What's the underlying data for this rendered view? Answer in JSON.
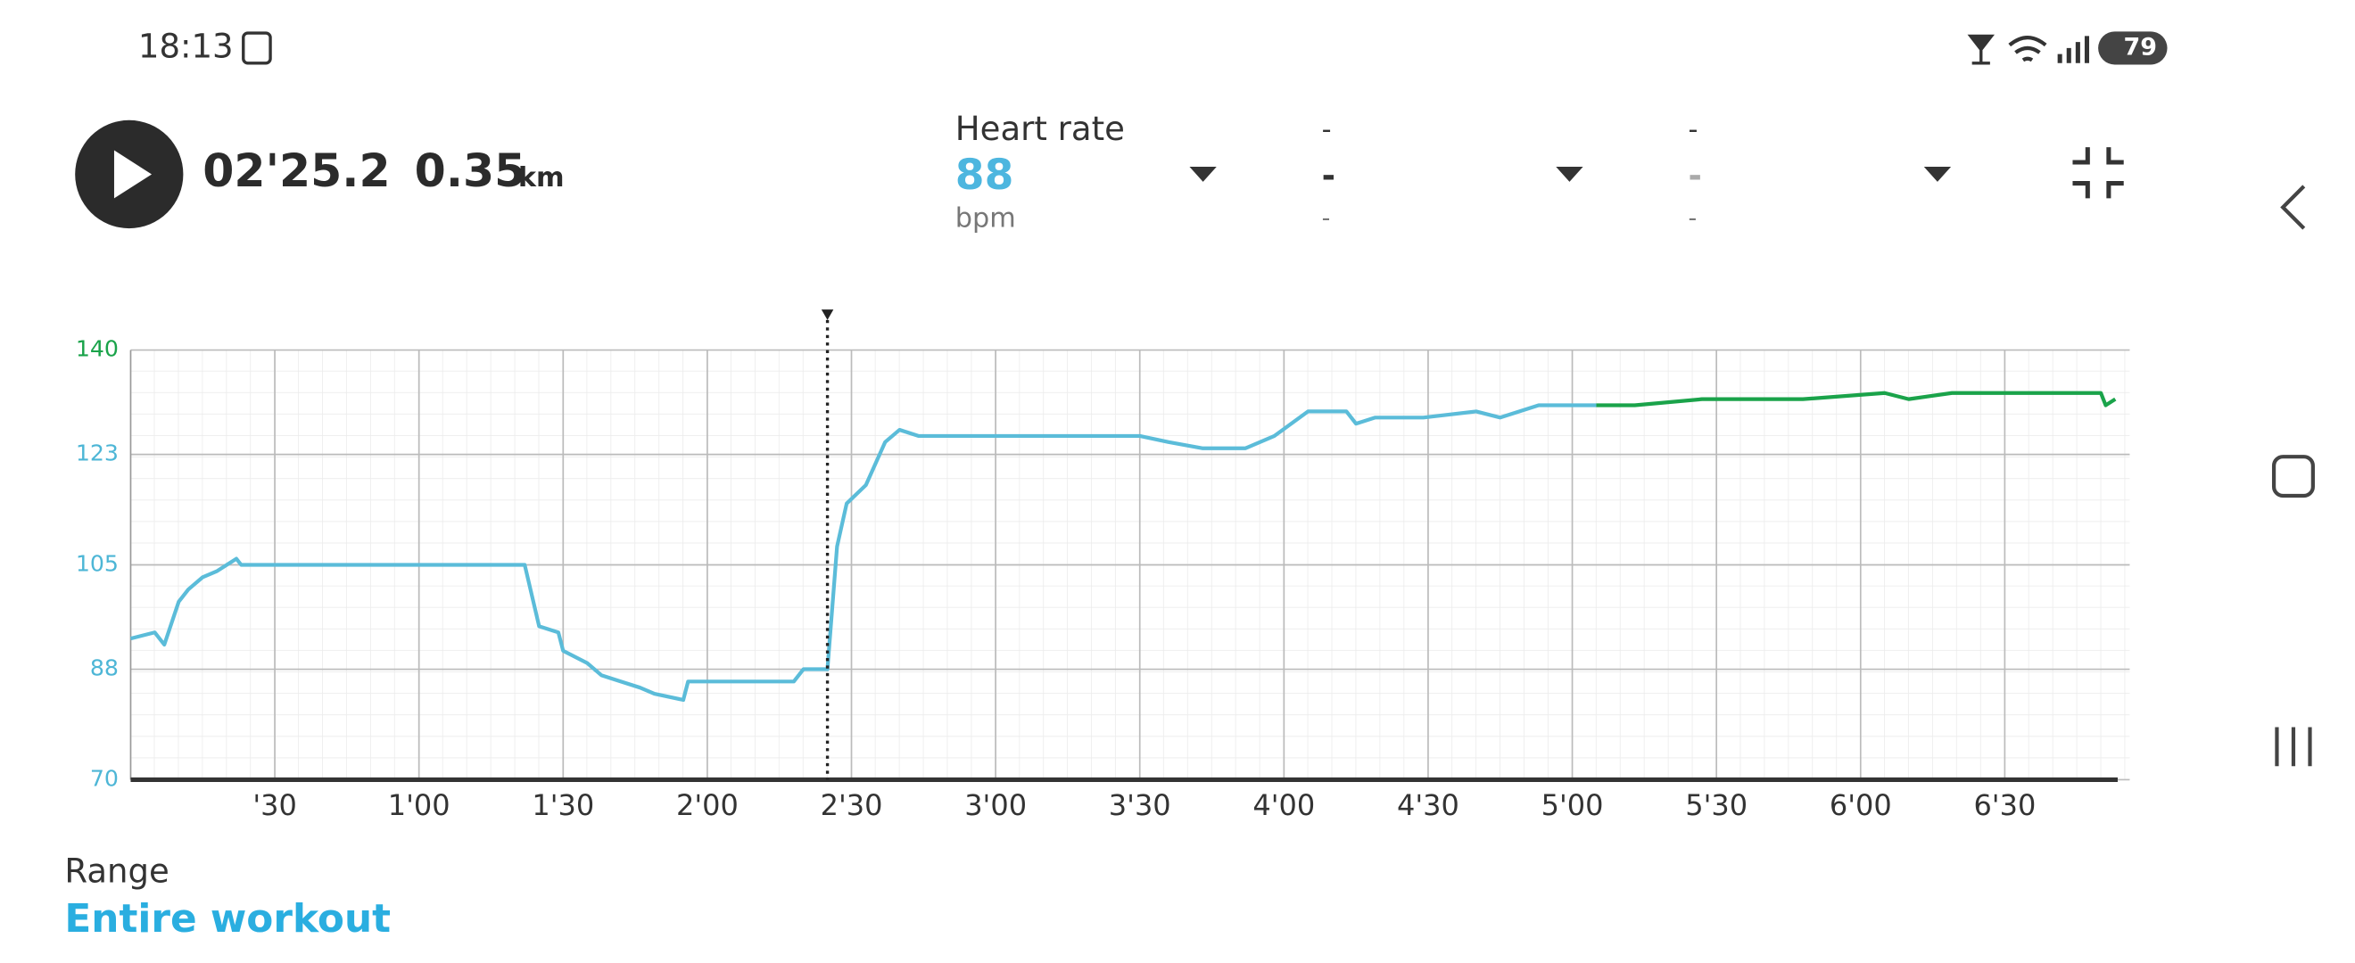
{
  "status_bar": {
    "time": "18:13",
    "battery": "79"
  },
  "header": {
    "elapsed": "02'25.2",
    "distance": "0.35",
    "distance_unit": "km"
  },
  "metrics": [
    {
      "label": "Heart rate",
      "value": "88",
      "unit": "bpm"
    },
    {
      "label": "-",
      "value": "-",
      "unit": "-"
    },
    {
      "label": "-",
      "value": "-",
      "unit": "-"
    }
  ],
  "chart_data": {
    "type": "line",
    "xlim": [
      0,
      416
    ],
    "ylim": [
      70,
      140
    ],
    "yticks": [
      70,
      88,
      105,
      123,
      140
    ],
    "xticks": [
      {
        "value": 30,
        "label": "'30"
      },
      {
        "value": 60,
        "label": "1'00"
      },
      {
        "value": 90,
        "label": "1'30"
      },
      {
        "value": 120,
        "label": "2'00"
      },
      {
        "value": 150,
        "label": "2'30"
      },
      {
        "value": 180,
        "label": "3'00"
      },
      {
        "value": 210,
        "label": "3'30"
      },
      {
        "value": 240,
        "label": "4'00"
      },
      {
        "value": 270,
        "label": "4'30"
      },
      {
        "value": 300,
        "label": "5'00"
      },
      {
        "value": 330,
        "label": "5'30"
      },
      {
        "value": 360,
        "label": "6'00"
      },
      {
        "value": 390,
        "label": "6'30"
      }
    ],
    "cursor_x": 145,
    "grid": true,
    "series": [
      {
        "color": "#5bbcd9",
        "x": [
          0,
          5,
          7,
          10,
          12,
          15,
          18,
          22,
          23,
          82,
          85,
          89,
          90,
          95,
          98,
          106,
          109,
          115,
          116,
          138,
          140,
          145,
          147,
          149,
          153,
          157,
          160,
          164,
          179,
          198,
          210,
          216,
          223,
          232,
          238,
          245,
          253,
          255,
          259,
          269,
          280,
          285,
          293,
          298,
          305
        ],
        "values": [
          93,
          94,
          92,
          99,
          101,
          103,
          104,
          106,
          105,
          105,
          95,
          94,
          91,
          89,
          87,
          85,
          84,
          83,
          86,
          86,
          88,
          88,
          108,
          115,
          118,
          125,
          127,
          126,
          126,
          126,
          126,
          125,
          124,
          124,
          126,
          130,
          130,
          128,
          129,
          129,
          130,
          129,
          131,
          131,
          131
        ]
      },
      {
        "color": "#1aa34a",
        "x": [
          305,
          313,
          327,
          348,
          365,
          370,
          379,
          410,
          411,
          413
        ],
        "values": [
          131,
          131,
          132,
          132,
          133,
          132,
          133,
          133,
          131,
          132
        ]
      }
    ]
  },
  "range": {
    "label": "Range",
    "value": "Entire workout"
  }
}
